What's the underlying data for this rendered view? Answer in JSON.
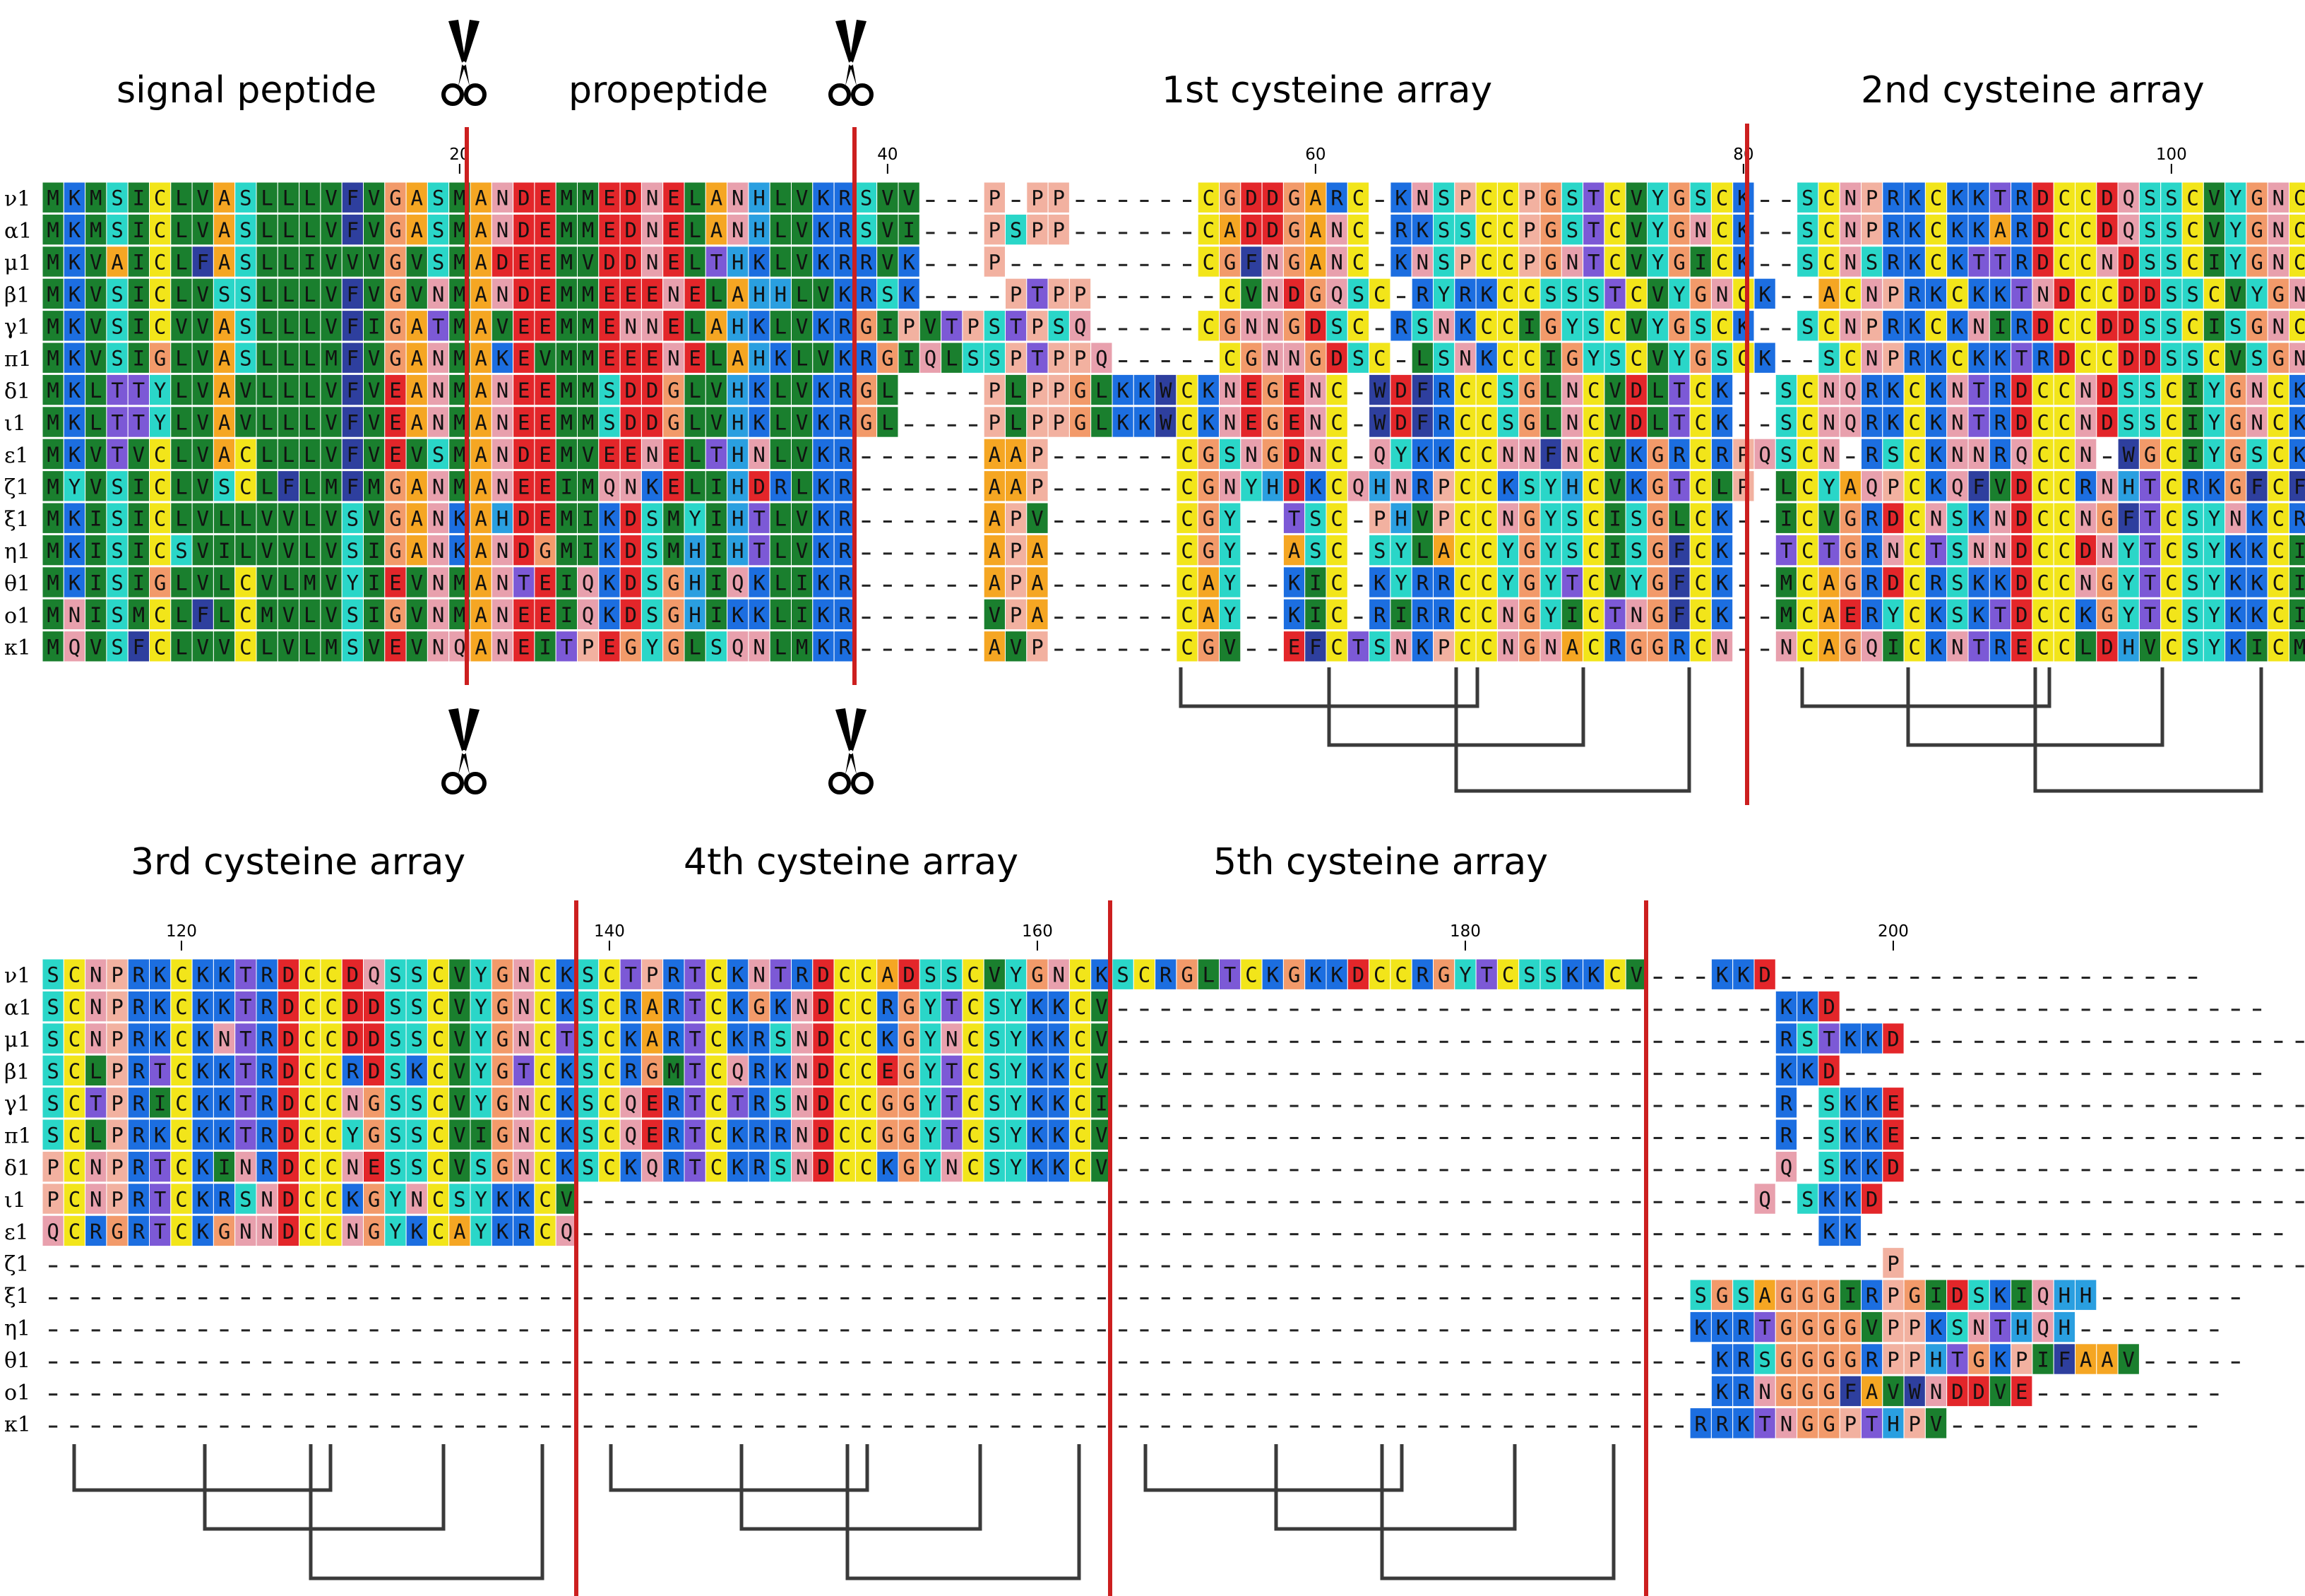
{
  "figure": {
    "section_labels": {
      "signal": "signal peptide",
      "propeptide": "propeptide",
      "cys1": "1st cysteine array",
      "cys2": "2nd cysteine array",
      "cys3": "3rd cysteine array",
      "cys4": "4th cysteine array",
      "cys5": "5th cysteine array"
    },
    "icons": {
      "cleavage": "scissors-icon"
    }
  },
  "alignment": {
    "names": [
      "ν1",
      "α1",
      "μ1",
      "β1",
      "γ1",
      "π1",
      "δ1",
      "ι1",
      "ε1",
      "ζ1",
      "ξ1",
      "η1",
      "θ1",
      "ο1",
      "κ1"
    ],
    "panel1_ticks": [
      "20",
      "40",
      "60",
      "80",
      "100"
    ],
    "panel2_ticks": [
      "120",
      "140",
      "160",
      "180",
      "200"
    ],
    "panel1": [
      "MKMSICLVASLLLVFVGASMANDEMMEDNELANHLVKRSVV---P-PP------CGDDGARC-KNSPCCPGSTCVYGSCK--SCNPRKCKKTRDCCDQSSCVYGNCK",
      "MKMSICLVASLLLVFVGASMANDEMMEDNELANHLVKRSVI---PSPP------CADDGANC-RKSSCCPGSTCVYGNCK--SCNPRKCKKARDCCDQSSCVYGNCK",
      "MKVAICLFASLLIVVVGVSMADEEMVDDNELTHKLVKRRVK---P---------CGFNGANC-KNSPCCPGNTCVYGICK--SCNSRKCKTTRDCCNDSSCIYGNCK",
      "MKVSICLVSSLLLVFVGVNMANDEMMEEENELAHHLVKRSK----PTPP------CVNDGQSC-RYRKCCSSSTCVYGNCK--ACNPRKCKKTNDCCDDSSCVYGNCK",
      "MKVSICVVASLLLVFIGATMAVEEMMENNELAHKLVKRGIPVTPSTPSQ-----CGNNGDSC-RSNKCCIGYSCVYGSCK--SCNPRKCKNIRDCCDDSSCISGNCK",
      "MKVSIGLVASLLLMFVGANMAKEVMMEEENELAHKLVKRGIQLSSPTPPQ-----CGNNGDSC-LSNKCCIGYSCVYGSCK--SCNPRKCKKTRDCCDDSSCVSGNCK",
      "MKLTTYLVAVLLLVFVEANMANEEMMSDDGLVHKLVKRGL----PLPPGLKKWCKNEGENC-WDFRCCSGLNCVDLTCK--SCNQRKCKNTRDCCNDSSCIYGNCK",
      "MKLTTYLVAVLLLVFVEANMANEEMMSDDGLVHKLVKRGL----PLPPGLKKWCKNEGENC-WDFRCCSGLNCVDLTCK--SCNQRKCKNTRDCCNDSSCIYGNCK",
      "MKVTVCLVACLLLVFVEVSMANDEMVEENELTHNLVKR------AAP------CGSNGDNC-QYKKCCNNFNCVKGRCRPQSCN-RSCKNNRQCCN-WGCIYGSCK",
      "MYVSICLVSCLFLMFMGANMANEEIMQNKELIHDRLKR------AAP------CGNYHDKCQHNRPCCKSYHCVKGTCLP-LCYAQPCKQFVDCCRNHTCRKGFCF",
      "MKISICLVLLVVLVSVGANKAHDEMIKDSMYIHTLVKR------APV------CGY--TSC-PHVPCCNGYSCISGLCK--ICVGRDCNSKNDCCNGFTCSYNKCR",
      "MKISICSVILVVLVSIGANKANDGMIKDSMHIHTLVKR------APA------CGY--ASC-SYLACCYGYSCISGFCK--TCTGRNCTSNNDCCDNYTCSYKKCI",
      "MKISIGLVLCVLMVYIEVNMANTEIQKDSGHIQKLIKR------APA------CAY--KIC-KYRRCCYGYTCVYGFCK--MCAGRDCRSKKDCCNGYTCSYKKCI",
      "MNISMCLFLCMVLVSIGVNMANEEIQKDSGHIKKLIKR------VPA------CAY--KIC-RIRRCCNGYICTNGFCK--MCAERYCKSKTDCCKGYTCSYKKCI",
      "MQVSFCLVVCLVLMSVEVNQANEITPEGYGLSQNLMKR------AVP------CGV--EFCTSNKPCCNGNACRGGRCN--NCAGQICKNTRECCLDHVCSYKICM"
    ],
    "panel2": [
      "SCNPRKCKKTRDCCDQSSCVYGNCKSCTPRTCKNTRDCCADSSCVYGNCKSCRGLTCKGKKDCCRGYTCSSKKCV---KKD--------------------",
      "SCNPRKCKKTRDCCDDSSCVYGNCKSCRARTCKGKNDCCRGYTCSYKKCV-------------------------------KKD--------------------",
      "SCNPRKCKNTRDCCDDSSCVYGNCTSCKARTCKRSNDCCKGYNCSYKKCV-------------------------------RSTKKD--------------------",
      "SCLPRTCKKTRDCCRDSKCVYGTCKSCRGMTCQRKNDCCEGYTCSYKKCV-------------------------------KKD--------------------",
      "SCTPRICKKTRDCCNGSSCVYGNCKSCQERTCTRSNDCCGGYTCSYKKCI-------------------------------R-SKKE--------------------",
      "SCLPRKCKKTRDCCYGSSCVIGNCKSCQERTCKRRNDCCGGYTCSYKKCV-------------------------------R-SKKE--------------------",
      "PCNPRTCKINRDCCNESSCVSGNCKSCKQRTCKRSNDCCKGYNCSYKKCV-------------------------------Q-SKKD--------------------",
      "PCNPRTCKRSNDCCKGYNCSYKKCV-------------------------------------------------------Q-SKKD--------------------",
      "QCRGRTCKGNNDCCNGYKCAYKRCQ----------------------------------------------------------KK--------------------",
      "--------------------------------------------------------------------------------------P--------------------",
      "-----------------------------------------------------------------------------SGSAGGGIRPGIDSKIQHH-------",
      "-----------------------------------------------------------------------------KKRTGGGGVPPKSNTHQH-------",
      "------------------------------------------------------------------------------KRSGGGGRPPHTGKPIFAAV-----",
      "------------------------------------------------------------------------------KRNGGGFAVWNDDVE---------",
      "-----------------------------------------------------------------------------RRKTNGGPTHPV------------"
    ]
  }
}
